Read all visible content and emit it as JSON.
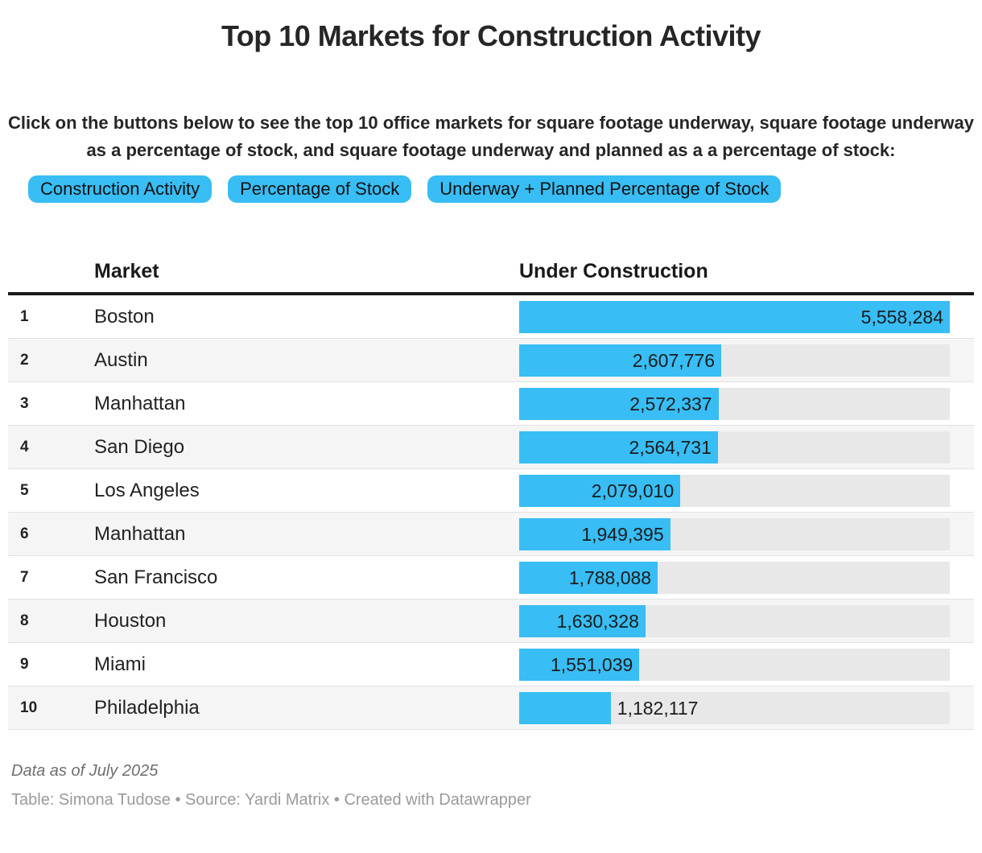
{
  "title": "Top 10 Markets for Construction Activity",
  "intro": "Click on the buttons below to see the top 10 office markets for square footage underway, square footage underway as a percentage of stock, and square footage underway and planned as a a percentage of stock:",
  "buttons": [
    {
      "label": "Construction Activity"
    },
    {
      "label": "Percentage of Stock"
    },
    {
      "label": "Underway + Planned Percentage of Stock"
    }
  ],
  "table": {
    "columns": {
      "market": "Market",
      "value": "Under Construction"
    },
    "rows": [
      {
        "rank": "1",
        "market": "Boston",
        "value": 5558284,
        "value_label": "5,558,284"
      },
      {
        "rank": "2",
        "market": "Austin",
        "value": 2607776,
        "value_label": "2,607,776"
      },
      {
        "rank": "3",
        "market": "Manhattan",
        "value": 2572337,
        "value_label": "2,572,337"
      },
      {
        "rank": "4",
        "market": "San Diego",
        "value": 2564731,
        "value_label": "2,564,731"
      },
      {
        "rank": "5",
        "market": "Los Angeles",
        "value": 2079010,
        "value_label": "2,079,010"
      },
      {
        "rank": "6",
        "market": "Manhattan",
        "value": 1949395,
        "value_label": "1,949,395"
      },
      {
        "rank": "7",
        "market": "San Francisco",
        "value": 1788088,
        "value_label": "1,788,088"
      },
      {
        "rank": "8",
        "market": "Houston",
        "value": 1630328,
        "value_label": "1,630,328"
      },
      {
        "rank": "9",
        "market": "Miami",
        "value": 1551039,
        "value_label": "1,551,039"
      },
      {
        "rank": "10",
        "market": "Philadelphia",
        "value": 1182117,
        "value_label": "1,182,117"
      }
    ]
  },
  "footer": {
    "footnote": "Data as of July 2025",
    "caption": "Table: Simona Tudose • Source: Yardi Matrix • Created with Datawrapper"
  },
  "colors": {
    "accent_blue": "#38bdf4",
    "bar_track": "#e8e8e8",
    "row_alt": "#f5f5f5",
    "header_border": "#1a1a1a"
  },
  "chart_data": {
    "type": "bar",
    "orientation": "horizontal",
    "title": "Top 10 Markets for Construction Activity",
    "series_label": "Under Construction",
    "categories": [
      "Boston",
      "Austin",
      "Manhattan",
      "San Diego",
      "Los Angeles",
      "Manhattan",
      "San Francisco",
      "Houston",
      "Miami",
      "Philadelphia"
    ],
    "values": [
      5558284,
      2607776,
      2572337,
      2564731,
      2079010,
      1949395,
      1788088,
      1630328,
      1551039,
      1182117
    ],
    "xlim": [
      0,
      5558284
    ],
    "legend": false,
    "grid": false,
    "value_format": "thousands-comma"
  }
}
